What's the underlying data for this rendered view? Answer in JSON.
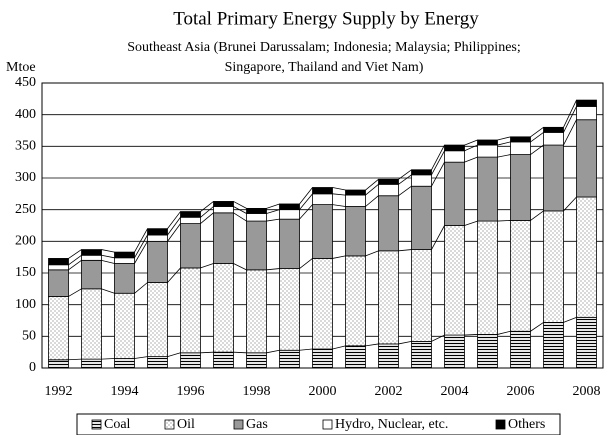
{
  "chart_data": {
    "type": "stacked_bar",
    "title": "Total Primary Energy Supply by Energy",
    "subtitle": [
      "Southeast Asia (Brunei Darussalam; Indonesia; Malaysia; Philippines;",
      "Singapore, Thailand and Viet Nam)"
    ],
    "y_label": "Mtoe",
    "categories": [
      "1992",
      null,
      "1994",
      null,
      "1996",
      null,
      "1998",
      null,
      "2000",
      null,
      "2002",
      null,
      "2004",
      null,
      "2006",
      null,
      "2008"
    ],
    "series": [
      {
        "name": "Coal",
        "color": "#ffffff",
        "hatch": "horizontal",
        "values": [
          13,
          14,
          15,
          18,
          24,
          25,
          24,
          28,
          30,
          35,
          38,
          42,
          52,
          53,
          58,
          72,
          80
        ]
      },
      {
        "name": "Oil",
        "color": "#ffffff",
        "hatch": "dots",
        "values": [
          100,
          111,
          103,
          117,
          134,
          140,
          131,
          129,
          143,
          142,
          147,
          145,
          173,
          179,
          175,
          176,
          190
        ]
      },
      {
        "name": "Gas",
        "color": "#999999",
        "values": [
          42,
          45,
          47,
          65,
          70,
          80,
          77,
          78,
          85,
          78,
          87,
          100,
          100,
          101,
          104,
          104,
          122
        ]
      },
      {
        "name": "Hydro, Nuclear, etc.",
        "color": "#ffffff",
        "values": [
          8,
          8,
          9,
          10,
          10,
          10,
          12,
          15,
          17,
          18,
          18,
          18,
          18,
          19,
          20,
          20,
          21
        ]
      },
      {
        "name": "Others",
        "color": "#000000",
        "values": [
          10,
          9,
          9,
          10,
          9,
          8,
          8,
          9,
          10,
          8,
          8,
          8,
          9,
          8,
          8,
          8,
          10
        ]
      }
    ],
    "ylim": [
      0,
      450
    ],
    "yticks": [
      0,
      50,
      100,
      150,
      200,
      250,
      300,
      350,
      400,
      450
    ],
    "grid": true,
    "legend": "bottom"
  }
}
